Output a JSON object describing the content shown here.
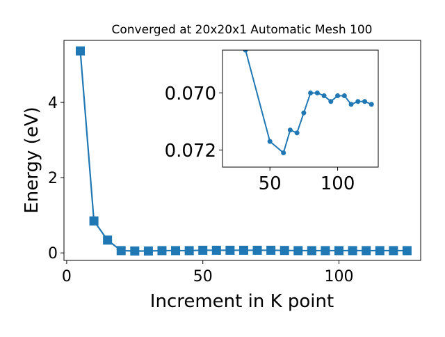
{
  "chart_data": [
    {
      "type": "line",
      "title": "Converged at 20x20x1 Automatic Mesh 100",
      "xlabel": "Increment in K point",
      "ylabel": "Energy (eV)",
      "xlim": [
        -1,
        130
      ],
      "ylim": [
        -0.2,
        5.65
      ],
      "xticks": [
        0,
        50,
        100
      ],
      "yticks": [
        0,
        2,
        4
      ],
      "xtick_labels": [
        "0",
        "50",
        "100"
      ],
      "ytick_labels": [
        "0",
        "2",
        "4"
      ],
      "color": "#1f77b4",
      "marker": "square",
      "grid": false,
      "series": [
        {
          "x": [
            5,
            10,
            15,
            20,
            25,
            30,
            35,
            40,
            45,
            50,
            55,
            60,
            65,
            70,
            75,
            80,
            85,
            90,
            95,
            100,
            105,
            110,
            115,
            120,
            125
          ],
          "values": [
            5.37,
            0.85,
            0.34,
            0.06,
            0.05,
            0.05,
            0.06,
            0.06,
            0.06,
            0.07,
            0.07,
            0.07,
            0.07,
            0.07,
            0.07,
            0.065,
            0.06,
            0.06,
            0.06,
            0.06,
            0.06,
            0.06,
            0.06,
            0.06,
            0.06
          ]
        }
      ]
    },
    {
      "type": "line",
      "role": "inset",
      "xlim": [
        15,
        130
      ],
      "ylim": [
        0.0726,
        0.0685
      ],
      "xticks": [
        50,
        100
      ],
      "yticks": [
        0.07,
        0.072
      ],
      "xtick_labels": [
        "50",
        "100"
      ],
      "ytick_labels": [
        "0.070",
        "0.072"
      ],
      "color": "#1f77b4",
      "marker": "circle",
      "series": [
        {
          "x": [
            32,
            50,
            60,
            65,
            70,
            75,
            80,
            85,
            90,
            95,
            100,
            105,
            110,
            115,
            120,
            125
          ],
          "values": [
            0.0685,
            0.0717,
            0.0721,
            0.0713,
            0.0714,
            0.0707,
            0.07,
            0.07,
            0.0701,
            0.0703,
            0.0701,
            0.0701,
            0.0704,
            0.0703,
            0.0703,
            0.0704
          ]
        }
      ]
    }
  ]
}
